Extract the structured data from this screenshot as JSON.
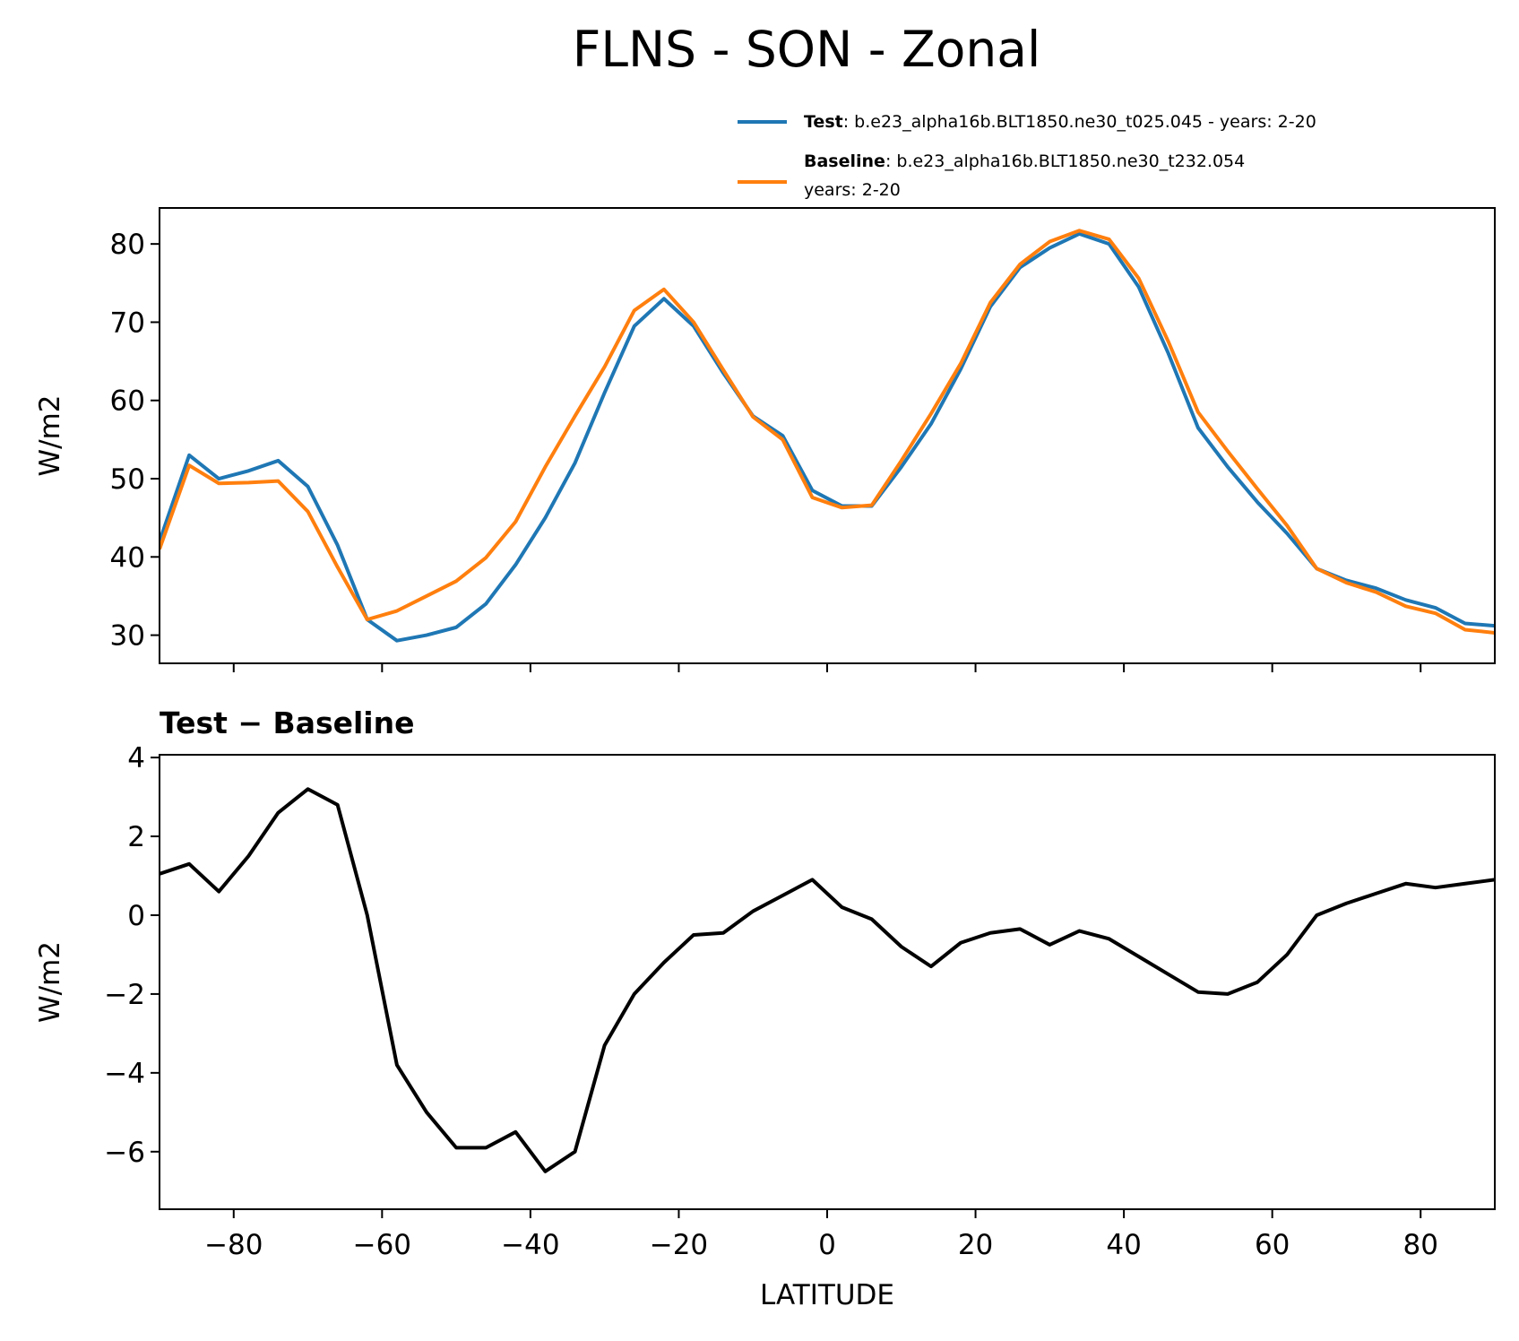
{
  "title": "FLNS - SON - Zonal",
  "chart_data": [
    {
      "type": "line",
      "ylabel": "W/m2",
      "x": [
        -90,
        -86,
        -82,
        -78,
        -74,
        -70,
        -66,
        -62,
        -58,
        -54,
        -50,
        -46,
        -42,
        -38,
        -34,
        -30,
        -26,
        -22,
        -18,
        -14,
        -10,
        -6,
        -2,
        2,
        6,
        10,
        14,
        18,
        22,
        26,
        30,
        34,
        38,
        42,
        46,
        50,
        54,
        58,
        62,
        66,
        70,
        74,
        78,
        82,
        86,
        90
      ],
      "series": [
        {
          "name": "Test",
          "description": [
            ": b.e23_alpha16b.BLT1850.ne30_t025.045 - years: 2-20"
          ],
          "color": "#1f77b4",
          "values": [
            42,
            53,
            50,
            51,
            52.3,
            49,
            41.5,
            32,
            29.3,
            30,
            31,
            34,
            39,
            45,
            52,
            61,
            69.5,
            73,
            69.5,
            63.5,
            58,
            55.5,
            48.5,
            46.5,
            46.5,
            51.5,
            57,
            64,
            72,
            77,
            79.5,
            81.3,
            80,
            74.5,
            66,
            56.5,
            51.5,
            47,
            43,
            38.5,
            37,
            36,
            34.5,
            33.5,
            31.5,
            31.2
          ]
        },
        {
          "name": "Baseline",
          "description": [
            ": b.e23_alpha16b.BLT1850.ne30_t232.054",
            "years: 2-20"
          ],
          "color": "#ff7f0e",
          "values": [
            41,
            51.7,
            49.4,
            49.5,
            49.7,
            45.8,
            38.7,
            32,
            33.1,
            35,
            36.9,
            39.9,
            44.5,
            51.5,
            58,
            64.3,
            71.5,
            74.2,
            70,
            63.9,
            57.9,
            55,
            47.6,
            46.3,
            46.6,
            52.3,
            58.3,
            64.7,
            72.5,
            77.4,
            80.3,
            81.7,
            80.6,
            75.6,
            67.5,
            58.5,
            53.5,
            48.7,
            44,
            38.5,
            36.7,
            35.5,
            33.7,
            32.8,
            30.7,
            30.3
          ]
        }
      ],
      "xlim": [
        -90,
        90
      ],
      "xticks": [
        -80,
        -60,
        -40,
        -20,
        0,
        20,
        40,
        60,
        80
      ],
      "show_xtick_labels": false,
      "ylim": [
        26.4,
        84.6
      ],
      "yticks": [
        30,
        40,
        50,
        60,
        70,
        80
      ]
    },
    {
      "type": "line",
      "title": "Test − Baseline",
      "ylabel": "W/m2",
      "xlabel": "LATITUDE",
      "x": [
        -90,
        -86,
        -82,
        -78,
        -74,
        -70,
        -66,
        -62,
        -58,
        -54,
        -50,
        -46,
        -42,
        -38,
        -34,
        -30,
        -26,
        -22,
        -18,
        -14,
        -10,
        -6,
        -2,
        2,
        6,
        10,
        14,
        18,
        22,
        26,
        30,
        34,
        38,
        42,
        46,
        50,
        54,
        58,
        62,
        66,
        70,
        74,
        78,
        82,
        86,
        90
      ],
      "series": [
        {
          "color": "#000000",
          "values": [
            1.05,
            1.3,
            0.6,
            1.5,
            2.6,
            3.2,
            2.8,
            0,
            -3.8,
            -5,
            -5.9,
            -5.9,
            -5.5,
            -6.5,
            -6,
            -3.3,
            -2,
            -1.2,
            -0.5,
            -0.45,
            0.1,
            0.5,
            0.9,
            0.2,
            -0.1,
            -0.8,
            -1.3,
            -0.7,
            -0.45,
            -0.35,
            -0.75,
            -0.4,
            -0.6,
            -1.05,
            -1.5,
            -1.95,
            -2,
            -1.7,
            -1,
            0,
            0.3,
            0.55,
            0.8,
            0.7,
            0.8,
            0.9
          ]
        }
      ],
      "xlim": [
        -90,
        90
      ],
      "xticks": [
        {
          "value": -80,
          "label": "−80"
        },
        {
          "value": -60,
          "label": "−60"
        },
        {
          "value": -40,
          "label": "−40"
        },
        {
          "value": -20,
          "label": "−20"
        },
        0,
        20,
        40,
        60,
        80
      ],
      "show_xtick_labels": true,
      "ylim": [
        -7.46,
        4.07
      ],
      "yticks": [
        {
          "value": -6,
          "label": "−6"
        },
        {
          "value": -4,
          "label": "−4"
        },
        {
          "value": -2,
          "label": "−2"
        },
        0,
        2,
        4
      ]
    }
  ]
}
